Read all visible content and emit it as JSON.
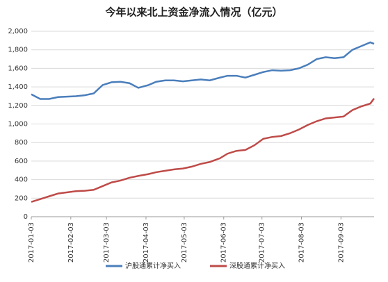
{
  "chart_data": {
    "type": "line",
    "title": "今年以来北上资金净流入情况（亿元）",
    "x": [
      "2017-01-03",
      "2017-01-10",
      "2017-01-17",
      "2017-01-24",
      "2017-02-07",
      "2017-02-14",
      "2017-02-21",
      "2017-02-28",
      "2017-03-07",
      "2017-03-14",
      "2017-03-21",
      "2017-03-28",
      "2017-04-05",
      "2017-04-11",
      "2017-04-18",
      "2017-04-25",
      "2017-05-02",
      "2017-05-09",
      "2017-05-16",
      "2017-05-23",
      "2017-05-31",
      "2017-06-06",
      "2017-06-13",
      "2017-06-20",
      "2017-06-27",
      "2017-07-04",
      "2017-07-11",
      "2017-07-18",
      "2017-07-25",
      "2017-08-01",
      "2017-08-08",
      "2017-08-15",
      "2017-08-22",
      "2017-08-29",
      "2017-09-05",
      "2017-09-12",
      "2017-09-19",
      "2017-09-26",
      "2017-09-29"
    ],
    "xticks": [
      "2017-01-03",
      "2017-02-03",
      "2017-03-03",
      "2017-04-03",
      "2017-05-03",
      "2017-06-03",
      "2017-07-03",
      "2017-08-03",
      "2017-09-03"
    ],
    "series": [
      {
        "name": "沪股通累计净买入",
        "color": "#4a7ebb",
        "values": [
          1320,
          1270,
          1270,
          1290,
          1300,
          1310,
          1330,
          1420,
          1450,
          1455,
          1440,
          1390,
          1420,
          1455,
          1470,
          1470,
          1460,
          1470,
          1480,
          1470,
          1500,
          1520,
          1520,
          1500,
          1530,
          1560,
          1580,
          1575,
          1580,
          1600,
          1640,
          1700,
          1720,
          1710,
          1720,
          1800,
          1840,
          1880,
          1865
        ]
      },
      {
        "name": "深股通累计净买入",
        "color": "#be4b48",
        "values": [
          160,
          190,
          220,
          250,
          275,
          280,
          290,
          330,
          370,
          390,
          420,
          440,
          460,
          480,
          495,
          510,
          520,
          540,
          570,
          590,
          630,
          680,
          710,
          720,
          770,
          840,
          860,
          870,
          900,
          940,
          990,
          1030,
          1060,
          1070,
          1080,
          1150,
          1190,
          1220,
          1275
        ]
      }
    ],
    "ylim": [
      0,
      2000
    ],
    "yticks": [
      0,
      200,
      400,
      600,
      800,
      {
        "value": 1000,
        "label": "1,000"
      },
      {
        "value": 1200,
        "label": "1,200"
      },
      {
        "value": 1400,
        "label": "1,400"
      },
      {
        "value": 1600,
        "label": "1,600"
      },
      {
        "value": 1800,
        "label": "1,800"
      },
      {
        "value": 2000,
        "label": "2,000"
      }
    ],
    "grid": true,
    "legend": "bottom"
  }
}
